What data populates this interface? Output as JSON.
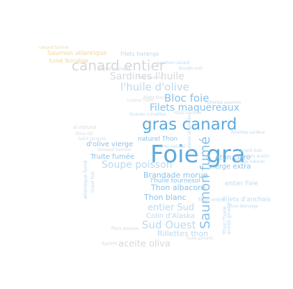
{
  "words": [
    {
      "id": "foie-gra",
      "text": "Foie gra",
      "cls": "c1"
    },
    {
      "id": "gras-canard",
      "text": "gras canard",
      "cls": "c1"
    },
    {
      "id": "saumon-fume",
      "text": "Saumon fumé",
      "cls": "c2"
    },
    {
      "id": "canard-entier",
      "text": "canard entier",
      "cls": "c4"
    },
    {
      "id": "huile-olive",
      "text": "l'huile d'olive",
      "cls": "c3"
    },
    {
      "id": "sardines-huile",
      "text": "Sardines l'huile",
      "cls": "c4"
    },
    {
      "id": "bloc-foie",
      "text": "Bloc foie",
      "cls": "c2"
    },
    {
      "id": "filets-maquereaux",
      "text": "Filets maquereaux",
      "cls": "c2"
    },
    {
      "id": "soupe-poisson",
      "text": "Soupe poisson",
      "cls": "c3"
    },
    {
      "id": "sud-ouest",
      "text": "Sud Ouest",
      "cls": "c3"
    },
    {
      "id": "aceite-oliva",
      "text": "aceite oliva",
      "cls": "c4"
    },
    {
      "id": "entier-sud",
      "text": "entier Sud",
      "cls": "c3"
    },
    {
      "id": "thon-albacore",
      "text": "Thon albacore",
      "cls": "c2"
    },
    {
      "id": "brandade-morue",
      "text": "Brandade morue",
      "cls": "c2"
    },
    {
      "id": "olive-vierge",
      "text": "d'olive vierge",
      "cls": "c2"
    },
    {
      "id": "truite-fumee",
      "text": "Truite fumée",
      "cls": "c2"
    },
    {
      "id": "vierge-extra",
      "text": "vierge extra",
      "cls": "c2"
    },
    {
      "id": "huile-tournesol",
      "text": "l'huile tournesol",
      "cls": "c2"
    },
    {
      "id": "thon-blanc",
      "text": "Thon blanc",
      "cls": "c2"
    },
    {
      "id": "colin-alaska",
      "text": "Colin d'Alaska",
      "cls": "c3"
    },
    {
      "id": "rillettes-thon",
      "text": "Rillettes thon",
      "cls": "c3"
    },
    {
      "id": "atun-claro",
      "text": "Atún claro",
      "cls": "c2"
    },
    {
      "id": "filets-anchois",
      "text": "Filets d'anchois",
      "cls": "c3"
    },
    {
      "id": "entier-foie",
      "text": "entier Foie",
      "cls": "c3"
    },
    {
      "id": "naturel-thon",
      "text": "naturel Thon",
      "cls": "c2"
    },
    {
      "id": "filets-harengs",
      "text": "Filets harengs",
      "cls": "c3"
    },
    {
      "id": "boudin-noir",
      "text": "Boudin noir",
      "cls": "c3"
    },
    {
      "id": "rillettes-saumon",
      "text": "Rillettes saumon",
      "cls": "c3"
    },
    {
      "id": "rillettes-sardine",
      "text": "Rillettes sardine",
      "cls": "c3"
    },
    {
      "id": "canard-sud",
      "text": "canard Sud",
      "cls": "c3"
    },
    {
      "id": "claro-aceite",
      "text": "claro aceite",
      "cls": "c3"
    },
    {
      "id": "smoked-salmon",
      "text": "Smoked Salmon",
      "cls": "c4"
    },
    {
      "id": "atlantique-fume",
      "text": "atlantique fumé",
      "cls": "c3"
    },
    {
      "id": "ouest-foie",
      "text": "Ouest foie",
      "cls": "c3"
    },
    {
      "id": "salmon-ahumado",
      "text": "salmon ahumado",
      "cls": "c3"
    },
    {
      "id": "thon-entier",
      "text": "Thon entier",
      "cls": "c3"
    },
    {
      "id": "thon-norvege",
      "text": "Thon Norvège",
      "cls": "c3"
    },
    {
      "id": "vierge-naturel",
      "text": "vierge naturel",
      "cls": "c3"
    },
    {
      "id": "al-natural",
      "text": "al natural",
      "cls": "c4"
    },
    {
      "id": "olive-oil",
      "text": "Olive Oil",
      "cls": "c4"
    },
    {
      "id": "saint-jacques",
      "text": "Saint Jacques",
      "cls": "c4"
    },
    {
      "id": "surimi",
      "text": "Surimi",
      "cls": "c4"
    },
    {
      "id": "thon-naturel",
      "text": "Thon naturel",
      "cls": "c3"
    },
    {
      "id": "foie-saumon",
      "text": "foie Saumon",
      "cls": "c4"
    },
    {
      "id": "saumon-atlantique",
      "text": "Saumon atlantique",
      "cls": "c5"
    },
    {
      "id": "fume-norvege",
      "text": "fumé Norvège",
      "cls": "c5"
    },
    {
      "id": "canard-tartine",
      "text": "canard tartine",
      "cls": "c5"
    },
    {
      "id": "saumon-canard",
      "text": "saumon canard",
      "cls": "c3"
    },
    {
      "id": "filets-thon",
      "text": "Filets thon",
      "cls": "c4"
    },
    {
      "id": "cuisine-thon",
      "text": "cuisine Thon",
      "cls": "c4"
    },
    {
      "id": "queues-crevettes",
      "text": "Queues crevettes",
      "cls": "c3"
    },
    {
      "id": "entier-canard",
      "text": "entier canard",
      "cls": "c4"
    },
    {
      "id": "thon-huile",
      "text": "Thon l'huile",
      "cls": "c3"
    },
    {
      "id": "aceite-girasol",
      "text": "aceite girasol",
      "cls": "c3"
    },
    {
      "id": "filets-sardine",
      "text": "Filets sardine",
      "cls": "c4"
    },
    {
      "id": "huile-piment",
      "text": "huile piment",
      "cls": "c4"
    },
    {
      "id": "filets-poisson",
      "text": "filets poisson",
      "cls": "c4"
    }
  ]
}
